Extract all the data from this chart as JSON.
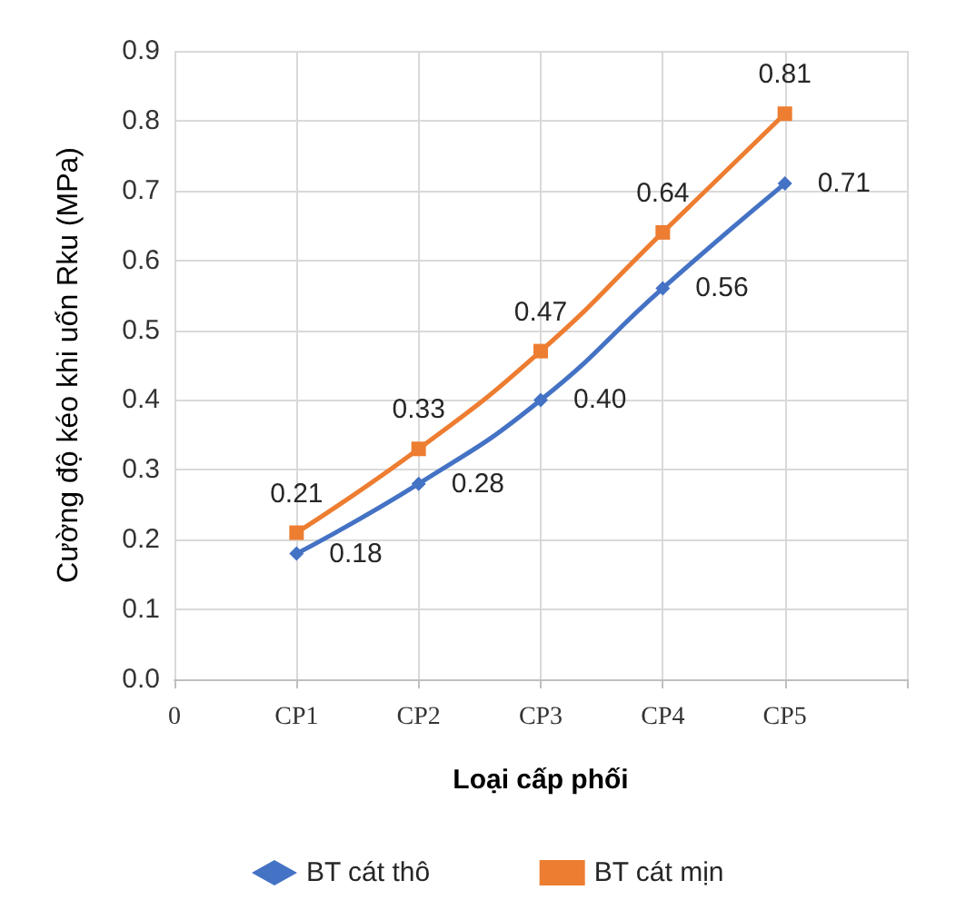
{
  "chart_data": {
    "type": "line",
    "xlabel": "Loại cấp phối",
    "ylabel": "Cường độ kéo khi uốn Rku (MPa)",
    "categories": [
      "0",
      "CP1",
      "CP2",
      "CP3",
      "CP4",
      "CP5",
      null
    ],
    "series": [
      {
        "name": "BT cát thô",
        "color": "#4472c4",
        "marker": "diamond",
        "values": [
          null,
          0.18,
          0.28,
          0.4,
          0.56,
          0.71,
          null
        ],
        "value_labels": [
          null,
          "0.18",
          "0.28",
          "0.40",
          "0.56",
          "0.71",
          null
        ]
      },
      {
        "name": "BT cát mịn",
        "color": "#ed7d31",
        "marker": "square",
        "values": [
          null,
          0.21,
          0.33,
          0.47,
          0.64,
          0.81,
          null
        ],
        "value_labels": [
          null,
          "0.21",
          "0.33",
          "0.47",
          "0.64",
          "0.81",
          null
        ]
      }
    ],
    "ylim": [
      0,
      0.9
    ],
    "yticks": [
      "0.0",
      "0.1",
      "0.2",
      "0.3",
      "0.4",
      "0.5",
      "0.6",
      "0.7",
      "0.8",
      "0.9"
    ],
    "grid": true,
    "legend": "bottom"
  }
}
